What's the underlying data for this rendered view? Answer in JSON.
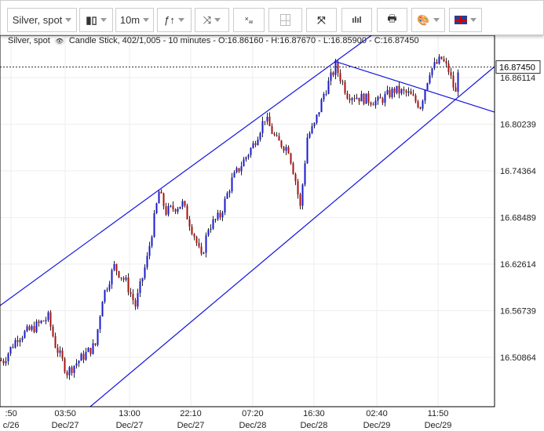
{
  "toolbar": {
    "symbol": "Silver, spot",
    "interval": "10m",
    "icons": [
      "candle-type-icon",
      "indicators-icon",
      "drawing-tools-icon",
      "clear-drawings-icon",
      "crosshair-icon",
      "fullscreen-icon",
      "volume-icon",
      "print-icon",
      "palette-icon",
      "language-flag-icon"
    ],
    "clear_label": "All"
  },
  "info": {
    "symbol": "Silver, spot",
    "details": "Candle Stick, 402/1,005 - 10 minutes - O:16.86160 - H:16.87670 - L:16.85900 - C:16.87450"
  },
  "chart_data": {
    "type": "candlestick",
    "title": "Silver, spot",
    "ylim": [
      16.4464,
      16.9145
    ],
    "x_count": 210,
    "y_ticks": [
      "16.86114",
      "16.80239",
      "16.74364",
      "16.68489",
      "16.62614",
      "16.56739",
      "16.50864"
    ],
    "x_ticks": [
      {
        "i": 4.7,
        "time": ":50",
        "date": "c/26"
      },
      {
        "i": 27.7,
        "time": "03:50",
        "date": "Dec/27"
      },
      {
        "i": 55,
        "time": "13:00",
        "date": "Dec/27"
      },
      {
        "i": 81,
        "time": "22:10",
        "date": "Dec/27"
      },
      {
        "i": 107.3,
        "time": "07:20",
        "date": "Dec/28"
      },
      {
        "i": 133.3,
        "time": "16:30",
        "date": "Dec/28"
      },
      {
        "i": 160,
        "time": "02:40",
        "date": "Dec/29"
      },
      {
        "i": 186,
        "time": "11:50",
        "date": "Dec/29"
      }
    ],
    "path": [
      [
        1,
        16.5047
      ],
      [
        7,
        16.5343
      ],
      [
        13,
        16.5442
      ],
      [
        20,
        16.559
      ],
      [
        23,
        16.5244
      ],
      [
        28,
        16.4899
      ],
      [
        33,
        16.5047
      ],
      [
        40,
        16.5244
      ],
      [
        43,
        16.5837
      ],
      [
        48,
        16.6232
      ],
      [
        53,
        16.6034
      ],
      [
        57,
        16.5738
      ],
      [
        62,
        16.633
      ],
      [
        67,
        16.717
      ],
      [
        70,
        16.6923
      ],
      [
        77,
        16.7021
      ],
      [
        82,
        16.6627
      ],
      [
        85,
        16.633
      ],
      [
        88,
        16.6725
      ],
      [
        93,
        16.6874
      ],
      [
        98,
        16.7318
      ],
      [
        102,
        16.7515
      ],
      [
        107,
        16.7762
      ],
      [
        112,
        16.8108
      ],
      [
        117,
        16.7812
      ],
      [
        122,
        16.7713
      ],
      [
        125,
        16.7318
      ],
      [
        127,
        16.6972
      ],
      [
        130,
        16.7861
      ],
      [
        133,
        16.8009
      ],
      [
        137,
        16.8404
      ],
      [
        142,
        16.875
      ],
      [
        147,
        16.8404
      ],
      [
        153,
        16.8355
      ],
      [
        160,
        16.8305
      ],
      [
        167,
        16.8453
      ],
      [
        173,
        16.8404
      ],
      [
        178,
        16.8256
      ],
      [
        182,
        16.87
      ],
      [
        187,
        16.8848
      ],
      [
        190,
        16.87
      ],
      [
        193,
        16.8404
      ],
      [
        194,
        16.8733
      ]
    ],
    "last_price": "16.87450",
    "trendlines": [
      [
        [
          0,
          16.5738
        ],
        [
          210,
          17.0273
        ]
      ],
      [
        [
          38.3,
          16.4464
        ],
        [
          210,
          16.875
        ]
      ],
      [
        [
          142,
          16.8819
        ],
        [
          210,
          16.8177
        ]
      ]
    ],
    "colors": {
      "up": "#1a1acc",
      "down": "#aa1111",
      "line": "#1515e0"
    }
  }
}
